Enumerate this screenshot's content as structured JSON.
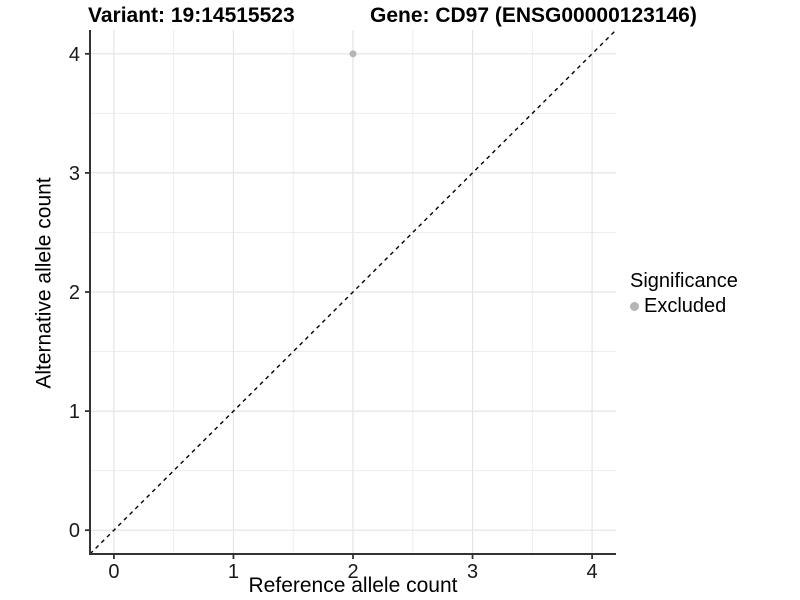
{
  "chart_data": {
    "type": "scatter",
    "titles": {
      "left": "Variant: 19:14515523",
      "right": "Gene: CD97 (ENSG00000123146)"
    },
    "xlabel": "Reference allele count",
    "ylabel": "Alternative allele count",
    "xlim": [
      -0.2,
      4.2
    ],
    "ylim": [
      -0.2,
      4.2
    ],
    "xticks": [
      0,
      1,
      2,
      3,
      4
    ],
    "yticks": [
      0,
      1,
      2,
      3,
      4
    ],
    "minor_gridlines_x": [
      0.5,
      1.5,
      2.5,
      3.5
    ],
    "minor_gridlines_y": [
      0.5,
      1.5,
      2.5,
      3.5
    ],
    "grid": "on",
    "series": [
      {
        "name": "Excluded",
        "color": "#b5b5b5",
        "points": [
          {
            "x": 2,
            "y": 4
          }
        ]
      }
    ],
    "reference_line": {
      "type": "identity",
      "slope": 1,
      "intercept": 0,
      "style": "dashed",
      "color": "#000000"
    },
    "legend": {
      "title": "Significance",
      "position": "right",
      "entries": [
        {
          "label": "Excluded",
          "color": "#b5b5b5"
        }
      ]
    },
    "style": {
      "grid_major_color": "#e4e4e4",
      "grid_minor_color": "#ededed",
      "axis_line_color": "#333333",
      "tick_label_color": "#1a1a1a",
      "background": "#ffffff"
    }
  }
}
